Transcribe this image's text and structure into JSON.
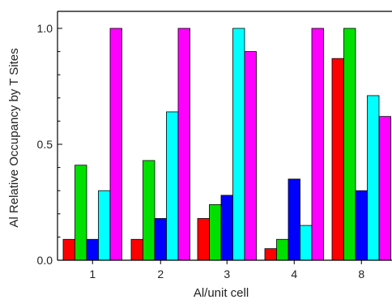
{
  "chart_data": {
    "type": "bar",
    "xlabel": "Al/unit cell",
    "ylabel": "Al Relative Occupancy by T Sites",
    "categories": [
      "1",
      "2",
      "3",
      "4",
      "8"
    ],
    "ylim": [
      0,
      1.1
    ],
    "yticks": [
      "0.0",
      "0.5",
      "1.0"
    ],
    "grid": false,
    "legend": "none",
    "series": [
      {
        "color": "#ff0000",
        "values": [
          0.09,
          0.09,
          0.18,
          0.05,
          0.87
        ]
      },
      {
        "color": "#00e000",
        "values": [
          0.41,
          0.43,
          0.24,
          0.09,
          1.0
        ]
      },
      {
        "color": "#0000ff",
        "values": [
          0.09,
          0.18,
          0.28,
          0.35,
          0.3
        ]
      },
      {
        "color": "#00ffff",
        "values": [
          0.3,
          0.64,
          1.0,
          0.15,
          0.71
        ]
      },
      {
        "color": "#ff00ff",
        "values": [
          1.0,
          1.0,
          0.9,
          1.0,
          0.62
        ]
      }
    ]
  }
}
